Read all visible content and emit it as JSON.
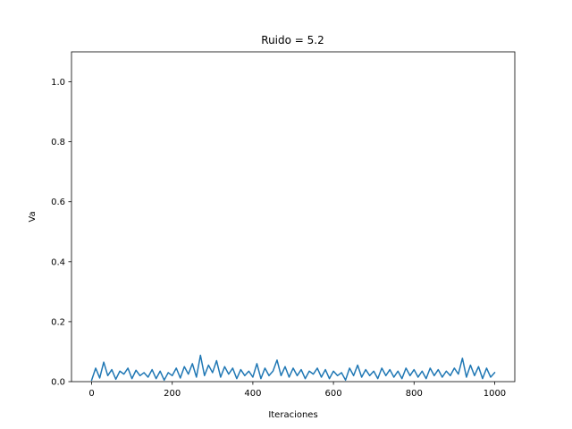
{
  "chart_data": {
    "type": "line",
    "title": "Ruido = 5.2",
    "xlabel": "Iteraciones",
    "ylabel": "Va",
    "xlim": [
      -50,
      1050
    ],
    "ylim": [
      0.0,
      1.1
    ],
    "xticks": [
      0,
      200,
      400,
      600,
      800,
      1000
    ],
    "xtick_labels": [
      "0",
      "200",
      "400",
      "600",
      "800",
      "1000"
    ],
    "yticks": [
      0.0,
      0.2,
      0.4,
      0.6,
      0.8,
      1.0
    ],
    "ytick_labels": [
      "0.0",
      "0.2",
      "0.4",
      "0.6",
      "0.8",
      "1.0"
    ],
    "grid": false,
    "series": [
      {
        "color": "#1f77b4",
        "x": [
          0,
          10,
          20,
          30,
          40,
          50,
          60,
          70,
          80,
          90,
          100,
          110,
          120,
          130,
          140,
          150,
          160,
          170,
          180,
          190,
          200,
          210,
          220,
          230,
          240,
          250,
          260,
          270,
          280,
          290,
          300,
          310,
          320,
          330,
          340,
          350,
          360,
          370,
          380,
          390,
          400,
          410,
          420,
          430,
          440,
          450,
          460,
          470,
          480,
          490,
          500,
          510,
          520,
          530,
          540,
          550,
          560,
          570,
          580,
          590,
          600,
          610,
          620,
          630,
          640,
          650,
          660,
          670,
          680,
          690,
          700,
          710,
          720,
          730,
          740,
          750,
          760,
          770,
          780,
          790,
          800,
          810,
          820,
          830,
          840,
          850,
          860,
          870,
          880,
          890,
          900,
          910,
          920,
          930,
          940,
          950,
          960,
          970,
          980,
          990,
          1000
        ],
        "y": [
          0.005,
          0.045,
          0.012,
          0.065,
          0.02,
          0.04,
          0.008,
          0.035,
          0.025,
          0.045,
          0.01,
          0.038,
          0.02,
          0.03,
          0.015,
          0.04,
          0.01,
          0.035,
          0.005,
          0.03,
          0.02,
          0.045,
          0.012,
          0.05,
          0.025,
          0.06,
          0.015,
          0.088,
          0.02,
          0.055,
          0.03,
          0.07,
          0.015,
          0.05,
          0.025,
          0.045,
          0.01,
          0.04,
          0.02,
          0.035,
          0.015,
          0.06,
          0.01,
          0.045,
          0.02,
          0.035,
          0.072,
          0.02,
          0.05,
          0.015,
          0.045,
          0.02,
          0.04,
          0.01,
          0.035,
          0.025,
          0.045,
          0.015,
          0.04,
          0.01,
          0.035,
          0.02,
          0.03,
          0.005,
          0.045,
          0.02,
          0.055,
          0.015,
          0.04,
          0.02,
          0.035,
          0.01,
          0.045,
          0.02,
          0.04,
          0.015,
          0.035,
          0.01,
          0.045,
          0.02,
          0.04,
          0.015,
          0.035,
          0.01,
          0.045,
          0.02,
          0.04,
          0.015,
          0.035,
          0.02,
          0.045,
          0.025,
          0.078,
          0.015,
          0.055,
          0.02,
          0.05,
          0.01,
          0.045,
          0.015,
          0.03
        ]
      }
    ]
  }
}
